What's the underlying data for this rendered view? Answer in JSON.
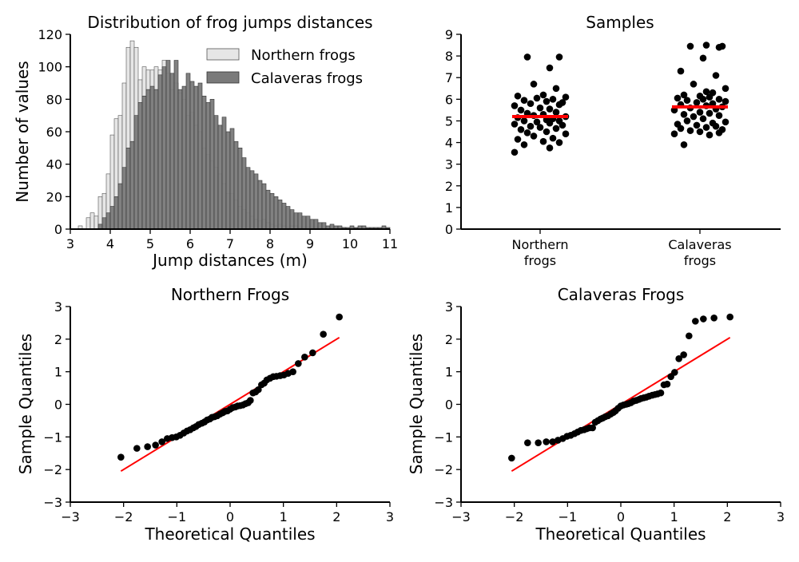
{
  "chart_data": [
    {
      "id": "histogram",
      "type": "bar",
      "title": "Distribution of frog jumps distances",
      "xlabel": "Jump distances (m)",
      "ylabel": "Number of values",
      "xlim": [
        3,
        11
      ],
      "ylim": [
        0,
        120
      ],
      "xticks": [
        "3",
        "4",
        "5",
        "6",
        "7",
        "8",
        "9",
        "10",
        "11"
      ],
      "yticks": [
        "0",
        "20",
        "40",
        "60",
        "80",
        "100",
        "120"
      ],
      "legend_position": "top-right",
      "bin_width": 0.1,
      "series": [
        {
          "name": "Northern frogs",
          "color": "#e6e6e6",
          "bin_start": 3.2,
          "values": [
            2,
            0,
            7,
            10,
            8,
            20,
            22,
            34,
            58,
            68,
            70,
            90,
            112,
            116,
            112,
            92,
            100,
            98,
            98,
            100,
            98,
            104,
            96,
            86,
            90,
            84,
            80,
            70,
            72,
            64,
            60,
            50,
            46,
            42,
            38,
            34,
            28,
            22,
            22,
            18,
            14,
            12,
            10,
            8,
            6,
            5,
            6,
            4,
            3,
            2,
            3,
            2,
            1,
            2,
            2,
            1,
            1,
            1,
            1,
            1,
            1,
            1,
            1,
            1,
            1,
            1,
            1
          ]
        },
        {
          "name": "Calaveras frogs",
          "color": "#7a7a7a",
          "bin_start": 3.7,
          "values": [
            3,
            7,
            10,
            14,
            20,
            28,
            38,
            50,
            54,
            70,
            78,
            82,
            86,
            88,
            86,
            95,
            100,
            104,
            96,
            104,
            86,
            88,
            96,
            91,
            88,
            90,
            82,
            78,
            80,
            70,
            64,
            69,
            60,
            62,
            54,
            50,
            44,
            38,
            36,
            34,
            30,
            28,
            24,
            22,
            20,
            18,
            16,
            14,
            12,
            10,
            10,
            8,
            8,
            6,
            6,
            4,
            4,
            2,
            3,
            2,
            2,
            1,
            1,
            2,
            1,
            2,
            2,
            1,
            1,
            1,
            1,
            2,
            1
          ]
        }
      ]
    },
    {
      "id": "samples",
      "type": "scatter",
      "title": "Samples",
      "ylim": [
        0,
        9
      ],
      "yticks": [
        "0",
        "1",
        "2",
        "3",
        "4",
        "5",
        "6",
        "7",
        "8",
        "9"
      ],
      "categories": [
        "Northern\nfrogs",
        "Calaveras\nfrogs"
      ],
      "mean_line_color": "#ff0000",
      "series": [
        {
          "name": "Northern frogs",
          "mean": 5.2,
          "jitter": [
            -0.08,
            0.03,
            -0.05,
            0.06,
            0.01,
            -0.07,
            0.04,
            -0.02,
            0.08,
            -0.04,
            0.02,
            -0.06,
            0.05,
            0.0,
            -0.03,
            0.07,
            -0.08,
            0.03,
            -0.01,
            0.06,
            -0.05,
            0.02,
            0.04,
            -0.07,
            0.08,
            -0.02,
            0.01,
            -0.04,
            0.05,
            -0.06,
            0.03,
            0.0,
            -0.08,
            0.06,
            -0.03,
            0.07,
            0.02,
            -0.05,
            0.04,
            -0.01,
            0.08,
            -0.07,
            0.01,
            0.05,
            -0.02,
            0.03,
            -0.04,
            0.06
          ],
          "values": [
            3.55,
            3.75,
            3.9,
            4.0,
            4.05,
            4.15,
            4.2,
            4.3,
            4.4,
            4.45,
            4.5,
            4.6,
            4.65,
            4.7,
            4.75,
            4.8,
            4.85,
            4.9,
            4.95,
            5.0,
            5.0,
            5.05,
            5.1,
            5.15,
            5.2,
            5.25,
            5.3,
            5.35,
            5.4,
            5.5,
            5.55,
            5.6,
            5.7,
            5.75,
            5.8,
            5.85,
            5.9,
            5.95,
            6.0,
            6.05,
            6.1,
            6.15,
            6.2,
            6.5,
            6.7,
            7.45,
            7.95,
            7.95
          ]
        },
        {
          "name": "Calaveras frogs",
          "mean": 5.65,
          "jitter": [
            -0.05,
            0.03,
            -0.08,
            0.06,
            0.0,
            -0.03,
            0.07,
            -0.06,
            0.02,
            0.05,
            -0.01,
            -0.07,
            0.04,
            0.08,
            -0.04,
            0.01,
            -0.02,
            0.06,
            -0.05,
            0.03,
            0.0,
            -0.08,
            0.05,
            -0.03,
            0.07,
            0.02,
            -0.06,
            0.04,
            -0.01,
            0.08,
            -0.04,
            0.01,
            0.06,
            -0.07,
            0.03,
            0.0,
            -0.05,
            0.04,
            0.02,
            0.08,
            -0.02,
            0.05,
            -0.06,
            0.01,
            0.06,
            -0.03,
            0.07,
            0.02
          ],
          "values": [
            3.9,
            4.35,
            4.4,
            4.45,
            4.5,
            4.55,
            4.6,
            4.65,
            4.7,
            4.75,
            4.8,
            4.85,
            4.9,
            4.95,
            5.0,
            5.1,
            5.2,
            5.25,
            5.3,
            5.35,
            5.4,
            5.5,
            5.55,
            5.6,
            5.65,
            5.7,
            5.75,
            5.8,
            5.85,
            5.9,
            5.95,
            6.0,
            6.0,
            6.05,
            6.1,
            6.15,
            6.2,
            6.3,
            6.35,
            6.5,
            6.7,
            7.1,
            7.3,
            7.9,
            8.4,
            8.45,
            8.45,
            8.5
          ]
        }
      ]
    },
    {
      "id": "qq-northern",
      "type": "scatter",
      "title": "Northern Frogs",
      "xlabel": "Theoretical Quantiles",
      "ylabel": "Sample Quantiles",
      "xlim": [
        -3,
        3
      ],
      "ylim": [
        -3,
        3
      ],
      "xticks": [
        "−3",
        "−2",
        "−1",
        "0",
        "1",
        "2",
        "3"
      ],
      "yticks": [
        "−3",
        "−2",
        "−1",
        "0",
        "1",
        "2",
        "3"
      ],
      "reference_line": {
        "color": "#ff0000",
        "from": [
          -2.05,
          -2.05
        ],
        "to": [
          2.05,
          2.05
        ]
      },
      "points": [
        [
          -2.05,
          -1.62
        ],
        [
          -1.75,
          -1.35
        ],
        [
          -1.55,
          -1.3
        ],
        [
          -1.4,
          -1.25
        ],
        [
          -1.28,
          -1.15
        ],
        [
          -1.18,
          -1.05
        ],
        [
          -1.09,
          -1.02
        ],
        [
          -1.01,
          -1.0
        ],
        [
          -0.94,
          -0.95
        ],
        [
          -0.87,
          -0.88
        ],
        [
          -0.81,
          -0.82
        ],
        [
          -0.75,
          -0.78
        ],
        [
          -0.69,
          -0.72
        ],
        [
          -0.64,
          -0.68
        ],
        [
          -0.59,
          -0.62
        ],
        [
          -0.53,
          -0.58
        ],
        [
          -0.48,
          -0.54
        ],
        [
          -0.43,
          -0.48
        ],
        [
          -0.38,
          -0.45
        ],
        [
          -0.34,
          -0.4
        ],
        [
          -0.29,
          -0.38
        ],
        [
          -0.24,
          -0.35
        ],
        [
          -0.19,
          -0.3
        ],
        [
          -0.14,
          -0.26
        ],
        [
          -0.1,
          -0.22
        ],
        [
          -0.05,
          -0.2
        ],
        [
          0.0,
          -0.15
        ],
        [
          0.05,
          -0.1
        ],
        [
          0.1,
          -0.08
        ],
        [
          0.14,
          -0.05
        ],
        [
          0.19,
          -0.04
        ],
        [
          0.24,
          -0.02
        ],
        [
          0.29,
          0.02
        ],
        [
          0.34,
          0.05
        ],
        [
          0.38,
          0.12
        ],
        [
          0.43,
          0.35
        ],
        [
          0.48,
          0.38
        ],
        [
          0.53,
          0.45
        ],
        [
          0.59,
          0.6
        ],
        [
          0.64,
          0.65
        ],
        [
          0.69,
          0.75
        ],
        [
          0.75,
          0.8
        ],
        [
          0.81,
          0.85
        ],
        [
          0.87,
          0.86
        ],
        [
          0.94,
          0.88
        ],
        [
          1.01,
          0.9
        ],
        [
          1.09,
          0.95
        ],
        [
          1.18,
          1.0
        ],
        [
          1.28,
          1.25
        ],
        [
          1.4,
          1.45
        ],
        [
          1.55,
          1.58
        ],
        [
          1.75,
          2.15
        ],
        [
          2.05,
          2.68
        ]
      ]
    },
    {
      "id": "qq-calaveras",
      "type": "scatter",
      "title": "Calaveras Frogs",
      "xlabel": "Theoretical Quantiles",
      "ylabel": "Sample Quantiles",
      "xlim": [
        -3,
        3
      ],
      "ylim": [
        -3,
        3
      ],
      "xticks": [
        "−3",
        "−2",
        "−1",
        "0",
        "1",
        "2",
        "3"
      ],
      "yticks": [
        "−3",
        "−2",
        "−1",
        "0",
        "1",
        "2",
        "3"
      ],
      "reference_line": {
        "color": "#ff0000",
        "from": [
          -2.05,
          -2.05
        ],
        "to": [
          2.05,
          2.05
        ]
      },
      "points": [
        [
          -2.05,
          -1.65
        ],
        [
          -1.75,
          -1.18
        ],
        [
          -1.55,
          -1.18
        ],
        [
          -1.4,
          -1.15
        ],
        [
          -1.28,
          -1.15
        ],
        [
          -1.18,
          -1.1
        ],
        [
          -1.09,
          -1.05
        ],
        [
          -1.01,
          -0.98
        ],
        [
          -0.94,
          -0.95
        ],
        [
          -0.87,
          -0.9
        ],
        [
          -0.81,
          -0.85
        ],
        [
          -0.75,
          -0.8
        ],
        [
          -0.69,
          -0.78
        ],
        [
          -0.64,
          -0.75
        ],
        [
          -0.59,
          -0.72
        ],
        [
          -0.53,
          -0.72
        ],
        [
          -0.48,
          -0.55
        ],
        [
          -0.43,
          -0.5
        ],
        [
          -0.38,
          -0.45
        ],
        [
          -0.34,
          -0.42
        ],
        [
          -0.29,
          -0.38
        ],
        [
          -0.24,
          -0.35
        ],
        [
          -0.19,
          -0.3
        ],
        [
          -0.14,
          -0.25
        ],
        [
          -0.1,
          -0.2
        ],
        [
          -0.05,
          -0.12
        ],
        [
          0.0,
          -0.05
        ],
        [
          0.05,
          -0.02
        ],
        [
          0.1,
          0.0
        ],
        [
          0.14,
          0.02
        ],
        [
          0.19,
          0.05
        ],
        [
          0.24,
          0.1
        ],
        [
          0.29,
          0.12
        ],
        [
          0.34,
          0.15
        ],
        [
          0.38,
          0.18
        ],
        [
          0.43,
          0.2
        ],
        [
          0.48,
          0.22
        ],
        [
          0.53,
          0.25
        ],
        [
          0.59,
          0.28
        ],
        [
          0.64,
          0.3
        ],
        [
          0.69,
          0.32
        ],
        [
          0.75,
          0.35
        ],
        [
          0.81,
          0.6
        ],
        [
          0.87,
          0.62
        ],
        [
          0.94,
          0.85
        ],
        [
          1.01,
          0.98
        ],
        [
          1.09,
          1.4
        ],
        [
          1.18,
          1.52
        ],
        [
          1.28,
          2.1
        ],
        [
          1.4,
          2.55
        ],
        [
          1.55,
          2.62
        ],
        [
          1.75,
          2.65
        ],
        [
          2.05,
          2.68
        ]
      ]
    }
  ]
}
